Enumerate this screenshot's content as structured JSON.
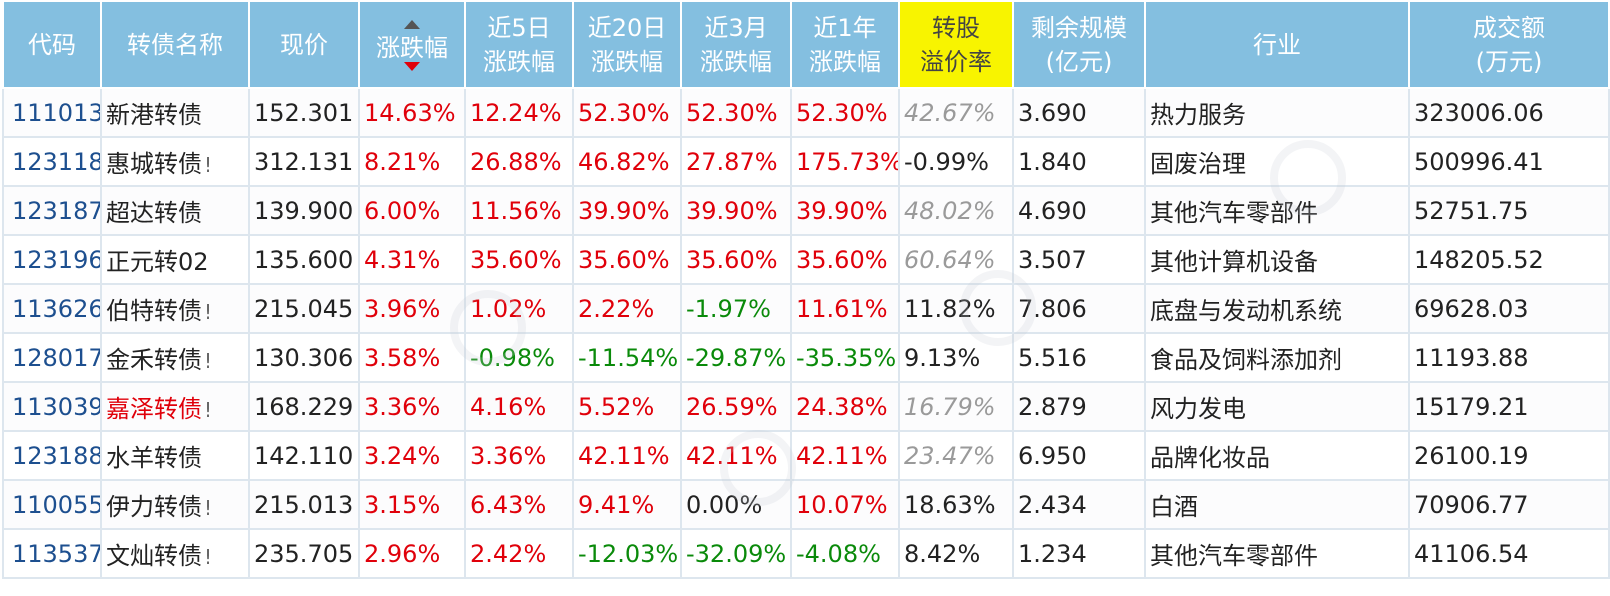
{
  "table": {
    "headers": [
      {
        "l1": "代码",
        "l2": ""
      },
      {
        "l1": "转债名称",
        "l2": ""
      },
      {
        "l1": "现价",
        "l2": ""
      },
      {
        "l1": "涨跌幅",
        "l2": ""
      },
      {
        "l1": "近5日",
        "l2": "涨跌幅"
      },
      {
        "l1": "近20日",
        "l2": "涨跌幅"
      },
      {
        "l1": "近3月",
        "l2": "涨跌幅"
      },
      {
        "l1": "近1年",
        "l2": "涨跌幅"
      },
      {
        "l1": "转股",
        "l2": "溢价率"
      },
      {
        "l1": "剩余规模",
        "l2": "(亿元)"
      },
      {
        "l1": "行业",
        "l2": ""
      },
      {
        "l1": "成交额",
        "l2": "(万元)"
      }
    ],
    "bang_mark": "!",
    "rows": [
      {
        "code": "111013",
        "name": "新港转债",
        "price": "152.301",
        "chg": "14.63%",
        "d5": "12.24%",
        "d20": "52.30%",
        "m3": "52.30%",
        "y1": "52.30%",
        "prem": "42.67%",
        "scale": "3.690",
        "industry": "热力服务",
        "amount": "323006.06"
      },
      {
        "code": "123118",
        "name": "惠城转债",
        "price": "312.131",
        "chg": "8.21%",
        "d5": "26.88%",
        "d20": "46.82%",
        "m3": "27.87%",
        "y1": "175.73%",
        "prem": "-0.99%",
        "scale": "1.840",
        "industry": "固废治理",
        "amount": "500996.41"
      },
      {
        "code": "123187",
        "name": "超达转债",
        "price": "139.900",
        "chg": "6.00%",
        "d5": "11.56%",
        "d20": "39.90%",
        "m3": "39.90%",
        "y1": "39.90%",
        "prem": "48.02%",
        "scale": "4.690",
        "industry": "其他汽车零部件",
        "amount": "52751.75"
      },
      {
        "code": "123196",
        "name": "正元转02",
        "price": "135.600",
        "chg": "4.31%",
        "d5": "35.60%",
        "d20": "35.60%",
        "m3": "35.60%",
        "y1": "35.60%",
        "prem": "60.64%",
        "scale": "3.507",
        "industry": "其他计算机设备",
        "amount": "148205.52"
      },
      {
        "code": "113626",
        "name": "伯特转债",
        "price": "215.045",
        "chg": "3.96%",
        "d5": "1.02%",
        "d20": "2.22%",
        "m3": "-1.97%",
        "y1": "11.61%",
        "prem": "11.82%",
        "scale": "7.806",
        "industry": "底盘与发动机系统",
        "amount": "69628.03"
      },
      {
        "code": "128017",
        "name": "金禾转债",
        "price": "130.306",
        "chg": "3.58%",
        "d5": "-0.98%",
        "d20": "-11.54%",
        "m3": "-29.87%",
        "y1": "-35.35%",
        "prem": "9.13%",
        "scale": "5.516",
        "industry": "食品及饲料添加剂",
        "amount": "11193.88"
      },
      {
        "code": "113039",
        "name": "嘉泽转债",
        "price": "168.229",
        "chg": "3.36%",
        "d5": "4.16%",
        "d20": "5.52%",
        "m3": "26.59%",
        "y1": "24.38%",
        "prem": "16.79%",
        "scale": "2.879",
        "industry": "风力发电",
        "amount": "15179.21"
      },
      {
        "code": "123188",
        "name": "水羊转债",
        "price": "142.110",
        "chg": "3.24%",
        "d5": "3.36%",
        "d20": "42.11%",
        "m3": "42.11%",
        "y1": "42.11%",
        "prem": "23.47%",
        "scale": "6.950",
        "industry": "品牌化妆品",
        "amount": "26100.19"
      },
      {
        "code": "110055",
        "name": "伊力转债",
        "price": "215.013",
        "chg": "3.15%",
        "d5": "6.43%",
        "d20": "9.41%",
        "m3": "0.00%",
        "y1": "10.07%",
        "prem": "18.63%",
        "scale": "2.434",
        "industry": "白酒",
        "amount": "70906.77"
      },
      {
        "code": "113537",
        "name": "文灿转债",
        "price": "235.705",
        "chg": "2.96%",
        "d5": "2.42%",
        "d20": "-12.03%",
        "m3": "-32.09%",
        "y1": "-4.08%",
        "prem": "8.42%",
        "scale": "1.234",
        "industry": "其他汽车零部件",
        "amount": "41106.54"
      }
    ]
  },
  "colors": {
    "header_bg": "#84bfe0",
    "header_highlight": "#f8f400",
    "up": "#e0000a",
    "down": "#0a8a0a",
    "code_link": "#1d4f8f"
  }
}
